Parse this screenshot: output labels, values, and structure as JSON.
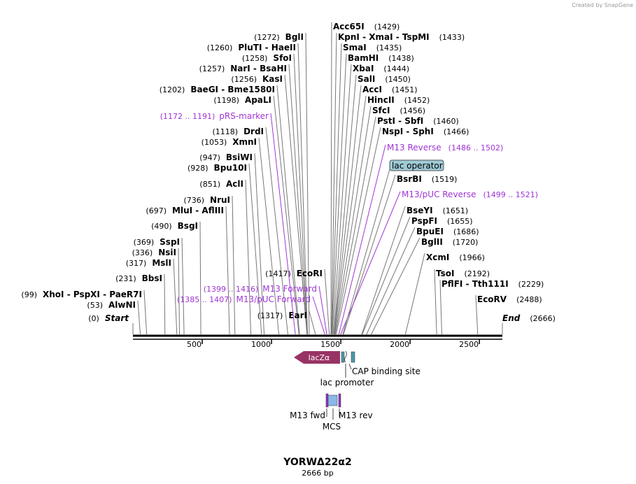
{
  "credit": "Created by SnapGene",
  "enzymes_left": [
    {
      "name": "BglI",
      "position": "(1272)"
    },
    {
      "name": "PluTI  - HaeII",
      "position": "(1260)"
    },
    {
      "name": "SfoI",
      "position": "(1258)"
    },
    {
      "name": "NarI  - BsaHI",
      "position": "(1257)"
    },
    {
      "name": "KasI",
      "position": "(1256)"
    },
    {
      "name": "BaeGI  - Bme1580I",
      "position": "(1202)"
    },
    {
      "name": "ApaLI",
      "position": "(1198)"
    },
    {
      "name": "DrdI",
      "position": "(1118)"
    },
    {
      "name": "XmnI",
      "position": "(1053)"
    },
    {
      "name": "BsiWI",
      "position": "(947)"
    },
    {
      "name": "Bpu10I",
      "position": "(928)"
    },
    {
      "name": "AclI",
      "position": "(851)"
    },
    {
      "name": "NruI",
      "position": "(736)"
    },
    {
      "name": "MluI  - AflIII",
      "position": "(697)"
    },
    {
      "name": "BsgI",
      "position": "(490)"
    },
    {
      "name": "SspI",
      "position": "(369)"
    },
    {
      "name": "NsiI",
      "position": "(336)"
    },
    {
      "name": "MslI",
      "position": "(317)"
    },
    {
      "name": "BbsI",
      "position": "(231)"
    },
    {
      "name": "XhoI  - PspXI  - PaeR7I",
      "position": "(99)"
    },
    {
      "name": "AlwNI",
      "position": "(53)"
    },
    {
      "name": "EcoRI",
      "position": "(1417)"
    },
    {
      "name": "EarI",
      "position": "(1317)"
    }
  ],
  "enzymes_right": [
    {
      "name": "Acc65I",
      "position": "(1429)"
    },
    {
      "name": "KpnI  - XmaI  - TspMI",
      "position": "(1433)"
    },
    {
      "name": "SmaI",
      "position": "(1435)"
    },
    {
      "name": "BamHI",
      "position": "(1438)"
    },
    {
      "name": "XbaI",
      "position": "(1444)"
    },
    {
      "name": "SalI",
      "position": "(1450)"
    },
    {
      "name": "AccI",
      "position": "(1451)"
    },
    {
      "name": "HincII",
      "position": "(1452)"
    },
    {
      "name": "SfcI",
      "position": "(1456)"
    },
    {
      "name": "PstI  - SbfI",
      "position": "(1460)"
    },
    {
      "name": "NspI  - SphI",
      "position": "(1466)"
    },
    {
      "name": "BsrBI",
      "position": "(1519)"
    },
    {
      "name": "BseYI",
      "position": "(1651)"
    },
    {
      "name": "PspFI",
      "position": "(1655)"
    },
    {
      "name": "BpuEI",
      "position": "(1686)"
    },
    {
      "name": "BglII",
      "position": "(1720)"
    },
    {
      "name": "XcmI",
      "position": "(1966)"
    },
    {
      "name": "TsoI",
      "position": "(2192)"
    },
    {
      "name": "PflFI  - Tth111I",
      "position": "(2229)"
    },
    {
      "name": "EcoRV",
      "position": "(2488)"
    }
  ],
  "primers_left": [
    {
      "name": "pRS-marker",
      "range": "(1172 .. 1191)"
    },
    {
      "name": "M13 Forward",
      "range": "(1399 .. 1416)"
    },
    {
      "name": "M13/pUC Forward",
      "range": "(1385 .. 1407)"
    }
  ],
  "primers_right": [
    {
      "name": "M13 Reverse",
      "range": "(1486 .. 1502)"
    },
    {
      "name": "M13/pUC Reverse",
      "range": "(1499 .. 1521)"
    }
  ],
  "lac_operator": "lac operator",
  "ends": {
    "start": {
      "name": "Start",
      "position": "(0)"
    },
    "end": {
      "name": "End",
      "position": "(2666)"
    }
  },
  "ruler": {
    "ticks": [
      500,
      1000,
      1500,
      2000,
      2500
    ]
  },
  "features": {
    "lacZ": "lacZα",
    "cap": "CAP binding site",
    "lac_promoter": "lac promoter",
    "m13_fwd": "M13 fwd",
    "m13_rev": "M13 rev",
    "mcs": "MCS"
  },
  "title": "YORWΔ22α2",
  "size": "2666 bp"
}
